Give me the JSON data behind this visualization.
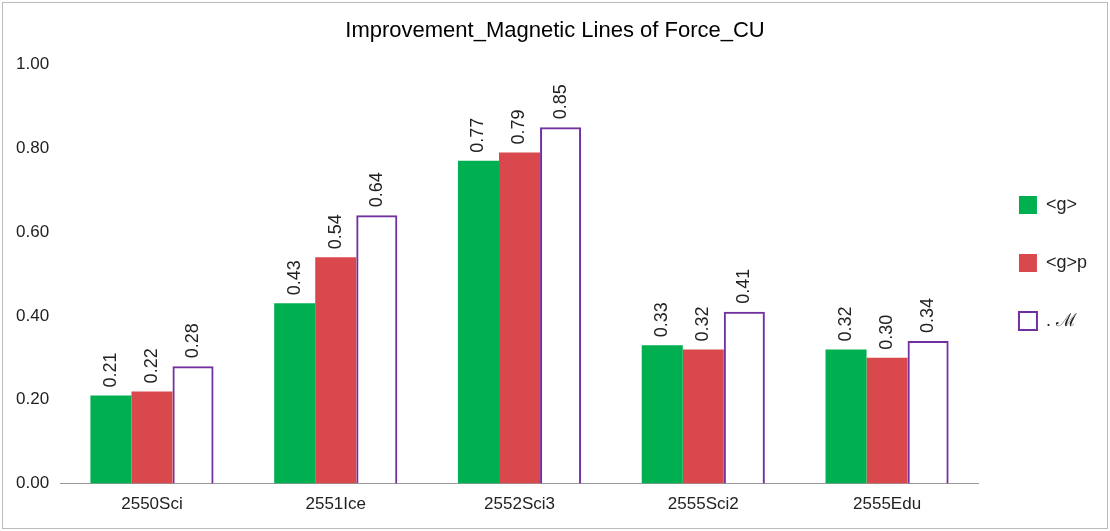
{
  "chart_data": {
    "type": "bar",
    "title": "Improvement_Magnetic Lines of Force_CU",
    "categories": [
      "2550Sci",
      "2551Ice",
      "2552Sci3",
      "2555Sci2",
      "2555Edu"
    ],
    "series": [
      {
        "name": "<g>",
        "color": "#00b050",
        "values": [
          0.21,
          0.43,
          0.77,
          0.33,
          0.32
        ],
        "value_labels": [
          "0.21",
          "0.43",
          "0.77",
          "0.33",
          "0.32"
        ]
      },
      {
        "name": "<g>p",
        "color": "#d9484c",
        "values": [
          0.22,
          0.54,
          0.79,
          0.32,
          0.3
        ],
        "value_labels": [
          "0.22",
          "0.54",
          "0.79",
          "0.32",
          "0.30"
        ]
      },
      {
        "name": ". ℳ",
        "color": "#7030a0",
        "values": [
          0.28,
          0.64,
          0.85,
          0.41,
          0.34
        ],
        "value_labels": [
          "0.28",
          "0.64",
          "0.85",
          "0.41",
          "0.34"
        ]
      }
    ],
    "ylim": [
      0,
      1
    ],
    "yticks": [
      {
        "value": 0,
        "label": "0.00"
      },
      {
        "value": 0.2,
        "label": "0.20"
      },
      {
        "value": 0.4,
        "label": "0.40"
      },
      {
        "value": 0.6,
        "label": "0.60"
      },
      {
        "value": 0.8,
        "label": "0.80"
      },
      {
        "value": 1,
        "label": "1.00"
      }
    ],
    "grid": false,
    "legend": "right"
  }
}
